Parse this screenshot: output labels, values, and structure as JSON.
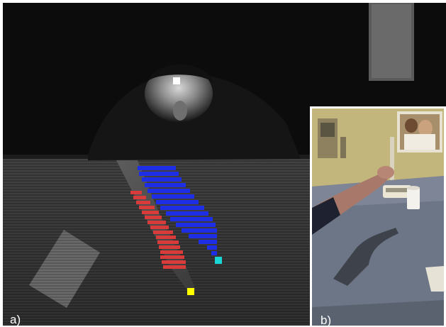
{
  "figure": {
    "panel_a": {
      "label": "a)",
      "marker_colors": {
        "head": "#ffffff",
        "fingertip_blue": "#19d6d6",
        "fingertip_red": "#ffff00",
        "arm_blue": "#1e2ee6",
        "arm_red": "#d93a3a"
      }
    },
    "panel_b": {
      "label": "b)"
    }
  }
}
